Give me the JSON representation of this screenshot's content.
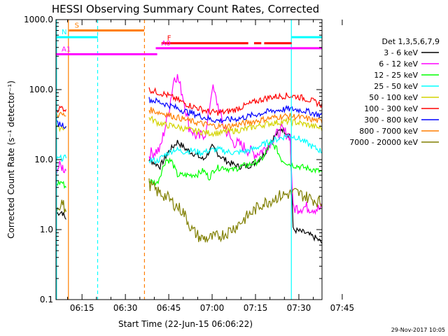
{
  "chart_data": {
    "type": "line",
    "title": "HESSI Observing Summary Count Rates, Corrected",
    "xlabel": "Start Time (22-Jun-15 06:06:22)",
    "ylabel": "Corrected Count Rate (s⁻¹ detector⁻¹)",
    "y_scale": "log",
    "ylim": [
      0.1,
      1000
    ],
    "xlim_minutes": [
      6.0,
      98.0
    ],
    "grid": false,
    "legend_placement": "right",
    "legend_title": "Det 1,3,5,6,7,9",
    "footer_date": "29-Nov-2017 10:05",
    "y_ticks": [
      {
        "value": 0.1,
        "label": "0.1"
      },
      {
        "value": 1,
        "label": "1.0"
      },
      {
        "value": 10,
        "label": "10.0"
      },
      {
        "value": 100,
        "label": "100.0"
      },
      {
        "value": 1000,
        "label": "1000.0"
      }
    ],
    "x_ticks": [
      {
        "minutes": 15,
        "label": "06:15"
      },
      {
        "minutes": 30,
        "label": "06:30"
      },
      {
        "minutes": 45,
        "label": "06:45"
      },
      {
        "minutes": 60,
        "label": "07:00"
      },
      {
        "minutes": 75,
        "label": "07:15"
      },
      {
        "minutes": 90,
        "label": "07:30"
      },
      {
        "minutes": 105,
        "label": "07:45"
      }
    ],
    "flag_bars": [
      {
        "label": "S",
        "color": "#ff7f00",
        "y": 700,
        "segments": [
          [
            10.5,
            36.5
          ]
        ]
      },
      {
        "label": "N",
        "color": "#00ffff",
        "y": 560,
        "segments": [
          [
            6.0,
            20.5
          ],
          [
            87.5,
            103.5
          ]
        ]
      },
      {
        "label": "F",
        "color": "#ff0000",
        "y": 460,
        "segments": [
          [
            42.5,
            72.5
          ],
          [
            74.5,
            77
          ],
          [
            78,
            87.5
          ]
        ]
      },
      {
        "label": "A0",
        "color": "#ff00ff",
        "y": 390,
        "segments": [
          [
            40.5,
            104
          ]
        ]
      },
      {
        "label": "A1",
        "color": "#ff00ff",
        "y": 320,
        "segments": [
          [
            6.0,
            41
          ]
        ]
      }
    ],
    "vertical_lines": [
      {
        "minutes": 6.2,
        "color": "#00ffff",
        "style": "solid"
      },
      {
        "minutes": 10.3,
        "color": "#ff7f00",
        "style": "solid"
      },
      {
        "minutes": 20.4,
        "color": "#00ffff",
        "style": "dashed"
      },
      {
        "minutes": 36.6,
        "color": "#ff7f00",
        "style": "dashed"
      },
      {
        "minutes": 87.4,
        "color": "#00ffff",
        "style": "solid"
      },
      {
        "minutes": 99.6,
        "color": "#00ffff",
        "style": "dashed"
      }
    ],
    "gap_minutes": [
      9.7,
      38.2
    ],
    "series": [
      {
        "name": "3 - 6 keV",
        "color": "#000000",
        "points": [
          [
            6.2,
            1.7
          ],
          [
            8,
            1.8
          ],
          [
            9.5,
            1.4
          ],
          [
            38.2,
            10
          ],
          [
            42,
            8
          ],
          [
            45,
            13
          ],
          [
            48,
            18
          ],
          [
            51,
            14
          ],
          [
            54,
            12
          ],
          [
            57,
            10
          ],
          [
            60,
            15
          ],
          [
            63,
            11
          ],
          [
            66,
            9
          ],
          [
            69,
            8
          ],
          [
            72,
            8
          ],
          [
            75,
            9
          ],
          [
            78,
            12
          ],
          [
            81,
            20
          ],
          [
            84,
            28
          ],
          [
            87,
            22
          ],
          [
            88,
            1.0
          ],
          [
            92,
            0.9
          ],
          [
            96,
            0.75
          ],
          [
            99,
            0.6
          ]
        ]
      },
      {
        "name": "6 - 12 keV",
        "color": "#ff00ff",
        "points": [
          [
            6.2,
            7.5
          ],
          [
            8,
            8
          ],
          [
            9.5,
            7
          ],
          [
            38.2,
            12
          ],
          [
            42,
            14
          ],
          [
            45,
            50
          ],
          [
            47,
            160
          ],
          [
            48,
            150
          ],
          [
            50,
            80
          ],
          [
            52,
            30
          ],
          [
            55,
            20
          ],
          [
            58,
            25
          ],
          [
            60,
            110
          ],
          [
            62,
            60
          ],
          [
            64,
            30
          ],
          [
            67,
            18
          ],
          [
            70,
            16
          ],
          [
            72,
            14
          ],
          [
            75,
            12
          ],
          [
            78,
            14
          ],
          [
            81,
            20
          ],
          [
            84,
            26
          ],
          [
            87,
            22
          ],
          [
            88,
            2.0
          ],
          [
            92,
            2.1
          ],
          [
            96,
            2.0
          ],
          [
            99,
            1.9
          ]
        ]
      },
      {
        "name": "12 - 25 keV",
        "color": "#00ff00",
        "points": [
          [
            6.2,
            4.5
          ],
          [
            8,
            4.8
          ],
          [
            9.5,
            4.0
          ],
          [
            38.2,
            5
          ],
          [
            41,
            4.6
          ],
          [
            44,
            10
          ],
          [
            46,
            9.5
          ],
          [
            48,
            6
          ],
          [
            52,
            6
          ],
          [
            55,
            6.2
          ],
          [
            57,
            7
          ],
          [
            59,
            5.5
          ],
          [
            61,
            7.5
          ],
          [
            64,
            7.8
          ],
          [
            67,
            7
          ],
          [
            70,
            8
          ],
          [
            73,
            8.5
          ],
          [
            76,
            9.5
          ],
          [
            78,
            11
          ],
          [
            80,
            17
          ],
          [
            82,
            15
          ],
          [
            84,
            10
          ],
          [
            87,
            8.5
          ],
          [
            90,
            8
          ],
          [
            93,
            7.5
          ],
          [
            96,
            7
          ],
          [
            99,
            6.5
          ]
        ]
      },
      {
        "name": "25 - 50 keV",
        "color": "#00ffff",
        "points": [
          [
            6.2,
            10
          ],
          [
            8,
            10.5
          ],
          [
            9.5,
            10.5
          ],
          [
            38.2,
            10
          ],
          [
            41,
            9.5
          ],
          [
            44,
            12
          ],
          [
            47,
            14
          ],
          [
            50,
            13
          ],
          [
            53,
            13.5
          ],
          [
            56,
            12.5
          ],
          [
            59,
            13.5
          ],
          [
            62,
            14
          ],
          [
            65,
            13
          ],
          [
            68,
            12.5
          ],
          [
            71,
            13
          ],
          [
            74,
            14
          ],
          [
            77,
            16
          ],
          [
            80,
            18
          ],
          [
            83,
            20
          ],
          [
            86,
            22
          ],
          [
            89,
            21
          ],
          [
            92,
            18
          ],
          [
            95,
            15
          ],
          [
            99,
            12.5
          ]
        ]
      },
      {
        "name": "50 - 100 keV",
        "color": "#d4d400",
        "points": [
          [
            6.2,
            28
          ],
          [
            8,
            29
          ],
          [
            9.5,
            28
          ],
          [
            38.2,
            40
          ],
          [
            41,
            34
          ],
          [
            44,
            31
          ],
          [
            47,
            30
          ],
          [
            50,
            28
          ],
          [
            53,
            26
          ],
          [
            56,
            25
          ],
          [
            59,
            24
          ],
          [
            62,
            24
          ],
          [
            65,
            25
          ],
          [
            68,
            26
          ],
          [
            71,
            27
          ],
          [
            74,
            29
          ],
          [
            77,
            31
          ],
          [
            80,
            33
          ],
          [
            83,
            34
          ],
          [
            86,
            35
          ],
          [
            89,
            34
          ],
          [
            92,
            32
          ],
          [
            95,
            30
          ],
          [
            99,
            27
          ]
        ]
      },
      {
        "name": "100 - 300 keV",
        "color": "#ff0000",
        "points": [
          [
            6.2,
            52
          ],
          [
            8,
            55
          ],
          [
            9.5,
            52
          ],
          [
            38.2,
            100
          ],
          [
            41,
            92
          ],
          [
            44,
            85
          ],
          [
            47,
            75
          ],
          [
            50,
            65
          ],
          [
            53,
            58
          ],
          [
            56,
            53
          ],
          [
            59,
            48
          ],
          [
            62,
            47
          ],
          [
            65,
            48
          ],
          [
            68,
            52
          ],
          [
            71,
            58
          ],
          [
            74,
            65
          ],
          [
            77,
            72
          ],
          [
            80,
            78
          ],
          [
            83,
            80
          ],
          [
            86,
            82
          ],
          [
            89,
            80
          ],
          [
            92,
            75
          ],
          [
            95,
            68
          ],
          [
            99,
            58
          ]
        ]
      },
      {
        "name": "300 - 800 keV",
        "color": "#0000ff",
        "points": [
          [
            6.2,
            33
          ],
          [
            8,
            32
          ],
          [
            9.5,
            30
          ],
          [
            38.2,
            72
          ],
          [
            41,
            68
          ],
          [
            44,
            62
          ],
          [
            47,
            56
          ],
          [
            50,
            50
          ],
          [
            53,
            46
          ],
          [
            56,
            42
          ],
          [
            59,
            38
          ],
          [
            62,
            36
          ],
          [
            65,
            37
          ],
          [
            68,
            38
          ],
          [
            71,
            40
          ],
          [
            74,
            43
          ],
          [
            77,
            46
          ],
          [
            80,
            49
          ],
          [
            83,
            51
          ],
          [
            86,
            53
          ],
          [
            89,
            52
          ],
          [
            92,
            50
          ],
          [
            95,
            46
          ],
          [
            99,
            42
          ]
        ]
      },
      {
        "name": "800 - 7000 keV",
        "color": "#ff7f00",
        "points": [
          [
            6.2,
            45
          ],
          [
            8,
            44
          ],
          [
            9.5,
            42
          ],
          [
            38.2,
            52
          ],
          [
            41,
            48
          ],
          [
            44,
            45
          ],
          [
            47,
            41
          ],
          [
            50,
            38
          ],
          [
            53,
            35
          ],
          [
            56,
            33
          ],
          [
            59,
            31
          ],
          [
            62,
            30
          ],
          [
            65,
            30
          ],
          [
            68,
            31
          ],
          [
            71,
            33
          ],
          [
            74,
            35
          ],
          [
            77,
            37
          ],
          [
            80,
            39
          ],
          [
            83,
            41
          ],
          [
            86,
            42
          ],
          [
            89,
            41
          ],
          [
            92,
            39
          ],
          [
            95,
            37
          ],
          [
            99,
            34
          ]
        ]
      },
      {
        "name": "7000 - 20000 keV",
        "color": "#807f00",
        "points": [
          [
            6.2,
            2.0
          ],
          [
            8,
            2.5
          ],
          [
            9.5,
            1.8
          ],
          [
            38.2,
            4.5
          ],
          [
            41,
            3.5
          ],
          [
            44,
            3.0
          ],
          [
            47,
            2.3
          ],
          [
            50,
            1.8
          ],
          [
            53,
            1.0
          ],
          [
            56,
            0.75
          ],
          [
            59,
            0.75
          ],
          [
            62,
            0.8
          ],
          [
            65,
            0.9
          ],
          [
            68,
            1.1
          ],
          [
            71,
            1.4
          ],
          [
            74,
            1.8
          ],
          [
            77,
            2.3
          ],
          [
            80,
            2.6
          ],
          [
            83,
            3.0
          ],
          [
            86,
            3.2
          ],
          [
            89,
            3.4
          ],
          [
            92,
            3.0
          ],
          [
            95,
            2.7
          ],
          [
            99,
            2.3
          ]
        ]
      }
    ]
  }
}
